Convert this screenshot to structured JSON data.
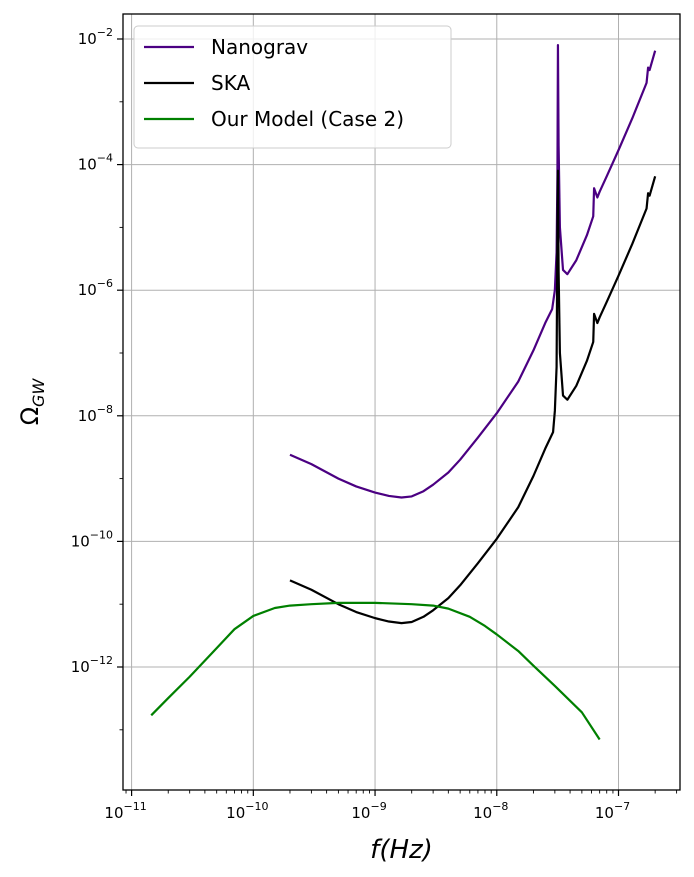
{
  "chart_data": {
    "type": "line",
    "xlabel_math": "f(Hz)",
    "ylabel_math": "Ω_GW",
    "x_scale": "log",
    "y_scale": "log",
    "xlim": [
      8.5e-12,
      3.2e-07
    ],
    "ylim": [
      1.1e-14,
      0.025
    ],
    "grid": true,
    "legend_position": "top-left",
    "x_ticks": [
      {
        "value": 1e-11,
        "base": "10",
        "exp": "−11"
      },
      {
        "value": 1e-10,
        "base": "10",
        "exp": "−10"
      },
      {
        "value": 1e-09,
        "base": "10",
        "exp": "−9"
      },
      {
        "value": 1e-08,
        "base": "10",
        "exp": "−8"
      },
      {
        "value": 1e-07,
        "base": "10",
        "exp": "−7"
      }
    ],
    "y_ticks": [
      {
        "value": 1e-12,
        "base": "10",
        "exp": "−12"
      },
      {
        "value": 1e-10,
        "base": "10",
        "exp": "−10"
      },
      {
        "value": 1e-08,
        "base": "10",
        "exp": "−8"
      },
      {
        "value": 1e-06,
        "base": "10",
        "exp": "−6"
      },
      {
        "value": 0.0001,
        "base": "10",
        "exp": "−4"
      },
      {
        "value": 0.01,
        "base": "10",
        "exp": "−2"
      }
    ],
    "series": [
      {
        "name": "Nanograv",
        "color": "#4b0082",
        "points": [
          [
            2e-10,
            2.4e-09
          ],
          [
            3e-10,
            1.7e-09
          ],
          [
            5e-10,
            1e-09
          ],
          [
            7e-10,
            7.5e-10
          ],
          [
            1e-09,
            6e-10
          ],
          [
            1.3e-09,
            5.3e-10
          ],
          [
            1.65e-09,
            5e-10
          ],
          [
            2e-09,
            5.2e-10
          ],
          [
            2.5e-09,
            6.3e-10
          ],
          [
            3e-09,
            8e-10
          ],
          [
            4e-09,
            1.25e-09
          ],
          [
            5e-09,
            2e-09
          ],
          [
            7e-09,
            4.5e-09
          ],
          [
            1e-08,
            1.1e-08
          ],
          [
            1.5e-08,
            3.5e-08
          ],
          [
            2e-08,
            1.1e-07
          ],
          [
            2.5e-08,
            3e-07
          ],
          [
            2.85e-08,
            5e-07
          ],
          [
            3e-08,
            1e-06
          ],
          [
            3.1e-08,
            4e-06
          ],
          [
            3.15e-08,
            7e-05
          ],
          [
            3.18e-08,
            0.008
          ],
          [
            3.22e-08,
            0.0002
          ],
          [
            3.3e-08,
            1e-05
          ],
          [
            3.5e-08,
            2.1e-06
          ],
          [
            3.8e-08,
            1.8e-06
          ],
          [
            4.5e-08,
            3e-06
          ],
          [
            5.5e-08,
            7.5e-06
          ],
          [
            6.2e-08,
            1.5e-05
          ],
          [
            6.3e-08,
            4.2e-05
          ],
          [
            6.7e-08,
            3e-05
          ],
          [
            7e-08,
            3.7e-05
          ],
          [
            8e-08,
            6.5e-05
          ],
          [
            1e-07,
            0.00017
          ],
          [
            1.3e-07,
            0.00055
          ],
          [
            1.7e-07,
            0.002
          ],
          [
            1.75e-07,
            0.0035
          ],
          [
            1.8e-07,
            0.0032
          ],
          [
            2e-07,
            0.0065
          ]
        ]
      },
      {
        "name": "SKA",
        "color": "#000000",
        "points": [
          [
            2e-10,
            2.4e-11
          ],
          [
            3e-10,
            1.7e-11
          ],
          [
            5e-10,
            1e-11
          ],
          [
            7e-10,
            7.5e-12
          ],
          [
            1e-09,
            6e-12
          ],
          [
            1.3e-09,
            5.3e-12
          ],
          [
            1.65e-09,
            5e-12
          ],
          [
            2e-09,
            5.2e-12
          ],
          [
            2.5e-09,
            6.3e-12
          ],
          [
            3e-09,
            8e-12
          ],
          [
            4e-09,
            1.25e-11
          ],
          [
            5e-09,
            2e-11
          ],
          [
            7e-09,
            4.5e-11
          ],
          [
            1e-08,
            1.1e-10
          ],
          [
            1.5e-08,
            3.5e-10
          ],
          [
            2e-08,
            1.1e-09
          ],
          [
            2.5e-08,
            3e-09
          ],
          [
            2.9e-08,
            5.5e-09
          ],
          [
            3e-08,
            1.2e-08
          ],
          [
            3.1e-08,
            6e-08
          ],
          [
            3.15e-08,
            1e-05
          ],
          [
            3.18e-08,
            8e-05
          ],
          [
            3.22e-08,
            2e-06
          ],
          [
            3.3e-08,
            1e-07
          ],
          [
            3.5e-08,
            2.1e-08
          ],
          [
            3.8e-08,
            1.8e-08
          ],
          [
            4.5e-08,
            3e-08
          ],
          [
            5.5e-08,
            7.5e-08
          ],
          [
            6.2e-08,
            1.5e-07
          ],
          [
            6.3e-08,
            4.2e-07
          ],
          [
            6.7e-08,
            3e-07
          ],
          [
            7e-08,
            3.7e-07
          ],
          [
            8e-08,
            6.5e-07
          ],
          [
            1e-07,
            1.7e-06
          ],
          [
            1.3e-07,
            5.5e-06
          ],
          [
            1.7e-07,
            2e-05
          ],
          [
            1.75e-07,
            3.5e-05
          ],
          [
            1.8e-07,
            3.2e-05
          ],
          [
            2e-07,
            6.5e-05
          ]
        ]
      },
      {
        "name": "Our Model (Case 2)",
        "color": "#008000",
        "points": [
          [
            1.45e-11,
            1.7e-13
          ],
          [
            2e-11,
            3.2e-13
          ],
          [
            3e-11,
            7e-13
          ],
          [
            5e-11,
            2e-12
          ],
          [
            7e-11,
            4e-12
          ],
          [
            1e-10,
            6.5e-12
          ],
          [
            1.5e-10,
            8.7e-12
          ],
          [
            2e-10,
            9.5e-12
          ],
          [
            3e-10,
            1e-11
          ],
          [
            5e-10,
            1.05e-11
          ],
          [
            1e-09,
            1.05e-11
          ],
          [
            2e-09,
            1e-11
          ],
          [
            3e-09,
            9.5e-12
          ],
          [
            4e-09,
            8.5e-12
          ],
          [
            6e-09,
            6.3e-12
          ],
          [
            8e-09,
            4.5e-12
          ],
          [
            1e-08,
            3.3e-12
          ],
          [
            1.5e-08,
            1.8e-12
          ],
          [
            2e-08,
            1.05e-12
          ],
          [
            3e-08,
            5e-13
          ],
          [
            5e-08,
            1.9e-13
          ],
          [
            7e-08,
            7e-14
          ]
        ]
      }
    ]
  }
}
